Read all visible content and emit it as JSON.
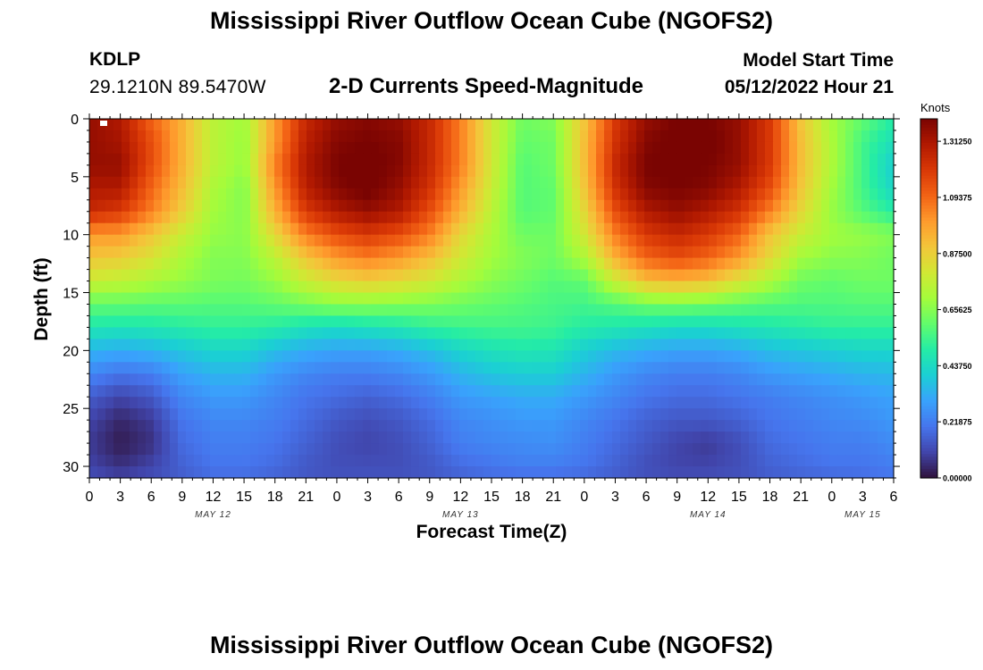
{
  "header": {
    "main_title": "Mississippi River Outflow Ocean Cube (NGOFS2)",
    "station_id": "KDLP",
    "station_coords": "29.1210N  89.5470W",
    "plot_subtitle": "2-D Currents Speed-Magnitude",
    "model_start_label": "Model Start Time",
    "model_start_value": "05/12/2022 Hour 21"
  },
  "footer": {
    "second_title": "Mississippi River Outflow Ocean Cube (NGOFS2)"
  },
  "chart_data": {
    "type": "heatmap",
    "title": "2-D Currents Speed-Magnitude",
    "xlabel": "Forecast Time(Z)",
    "ylabel": "Depth (ft)",
    "x_range_hours": [
      0,
      78
    ],
    "x_ticks": [
      0,
      3,
      6,
      9,
      12,
      15,
      18,
      21,
      24,
      27,
      30,
      33,
      36,
      39,
      42,
      45,
      48,
      51,
      54,
      57,
      60,
      63,
      66,
      69,
      72,
      75,
      78
    ],
    "x_tick_labels": [
      "0",
      "3",
      "6",
      "9",
      "12",
      "15",
      "18",
      "21",
      "0",
      "3",
      "6",
      "9",
      "12",
      "15",
      "18",
      "21",
      "0",
      "3",
      "6",
      "9",
      "12",
      "15",
      "18",
      "21",
      "0",
      "3",
      "6"
    ],
    "date_labels": [
      {
        "hour": 12,
        "label": "MAY 12"
      },
      {
        "hour": 36,
        "label": "MAY 13"
      },
      {
        "hour": 60,
        "label": "MAY 14"
      },
      {
        "hour": 75,
        "label": "MAY 15"
      }
    ],
    "y_range_ft": [
      0,
      31
    ],
    "y_reversed": true,
    "y_ticks": [
      0,
      5,
      10,
      15,
      20,
      25,
      30
    ],
    "y_tick_labels": [
      "0",
      "5",
      "10",
      "15",
      "20",
      "25",
      "30"
    ],
    "colorbar": {
      "unit": "Knots",
      "range": [
        0.0,
        1.4
      ],
      "ticks": [
        0.0,
        0.21875,
        0.4375,
        0.65625,
        0.875,
        1.09375,
        1.3125
      ],
      "tick_labels": [
        "0.00000",
        "0.21875",
        "0.43750",
        "0.65625",
        "0.87500",
        "1.09375",
        "1.31250"
      ],
      "colors": [
        "#30123b",
        "#4145ab",
        "#4675ed",
        "#39a2fc",
        "#1bcfd4",
        "#24eca6",
        "#61fc6c",
        "#a4fc3b",
        "#d1e834",
        "#f3c63a",
        "#fe9b2d",
        "#f36315",
        "#d93806",
        "#b11901",
        "#7a0402"
      ]
    },
    "depths_ft": [
      0,
      2,
      4,
      6,
      8,
      10,
      12,
      14,
      16,
      18,
      20,
      22,
      24,
      26,
      28,
      30,
      31
    ],
    "hours": [
      0,
      3,
      6,
      9,
      12,
      15,
      18,
      21,
      24,
      27,
      30,
      33,
      36,
      39,
      42,
      45,
      48,
      51,
      54,
      57,
      60,
      63,
      66,
      69,
      72,
      75,
      78
    ],
    "speed_knots": [
      [
        1.35,
        1.3,
        1.1,
        0.95,
        0.75,
        0.7,
        1.0,
        1.25,
        1.35,
        1.38,
        1.35,
        1.25,
        1.05,
        0.8,
        0.62,
        0.65,
        0.9,
        1.2,
        1.35,
        1.4,
        1.4,
        1.35,
        1.2,
        0.9,
        0.7,
        0.6,
        0.5
      ],
      [
        1.35,
        1.32,
        1.15,
        0.95,
        0.75,
        0.68,
        1.0,
        1.28,
        1.38,
        1.4,
        1.38,
        1.25,
        1.05,
        0.8,
        0.6,
        0.62,
        0.92,
        1.22,
        1.38,
        1.42,
        1.42,
        1.35,
        1.2,
        0.92,
        0.72,
        0.55,
        0.45
      ],
      [
        1.35,
        1.35,
        1.15,
        0.95,
        0.75,
        0.68,
        1.05,
        1.3,
        1.4,
        1.42,
        1.38,
        1.25,
        1.05,
        0.8,
        0.58,
        0.62,
        0.92,
        1.25,
        1.4,
        1.42,
        1.4,
        1.35,
        1.2,
        0.92,
        0.72,
        0.55,
        0.4
      ],
      [
        1.3,
        1.3,
        1.1,
        0.92,
        0.72,
        0.65,
        1.0,
        1.28,
        1.38,
        1.42,
        1.35,
        1.22,
        1.0,
        0.78,
        0.58,
        0.6,
        0.9,
        1.22,
        1.38,
        1.4,
        1.38,
        1.3,
        1.15,
        0.9,
        0.7,
        0.55,
        0.42
      ],
      [
        1.25,
        1.2,
        1.05,
        0.88,
        0.7,
        0.65,
        0.95,
        1.2,
        1.3,
        1.35,
        1.3,
        1.15,
        0.95,
        0.75,
        0.58,
        0.6,
        0.85,
        1.15,
        1.3,
        1.35,
        1.3,
        1.22,
        1.05,
        0.85,
        0.68,
        0.58,
        0.5
      ],
      [
        1.0,
        1.0,
        0.9,
        0.78,
        0.68,
        0.66,
        0.85,
        1.05,
        1.15,
        1.2,
        1.15,
        1.05,
        0.85,
        0.72,
        0.62,
        0.62,
        0.8,
        1.05,
        1.2,
        1.25,
        1.2,
        1.1,
        0.9,
        0.78,
        0.7,
        0.68,
        0.65
      ],
      [
        0.9,
        0.88,
        0.82,
        0.72,
        0.65,
        0.65,
        0.75,
        0.9,
        1.0,
        1.05,
        1.0,
        0.92,
        0.8,
        0.7,
        0.65,
        0.62,
        0.72,
        0.95,
        1.1,
        1.15,
        1.1,
        1.0,
        0.85,
        0.7,
        0.66,
        0.65,
        0.62
      ],
      [
        0.78,
        0.76,
        0.72,
        0.68,
        0.64,
        0.63,
        0.68,
        0.78,
        0.85,
        0.88,
        0.85,
        0.8,
        0.72,
        0.66,
        0.62,
        0.58,
        0.6,
        0.78,
        0.92,
        0.95,
        0.92,
        0.82,
        0.72,
        0.62,
        0.6,
        0.62,
        0.62
      ],
      [
        0.6,
        0.6,
        0.59,
        0.59,
        0.58,
        0.58,
        0.6,
        0.63,
        0.66,
        0.66,
        0.65,
        0.64,
        0.62,
        0.6,
        0.58,
        0.56,
        0.55,
        0.58,
        0.62,
        0.63,
        0.62,
        0.6,
        0.58,
        0.57,
        0.57,
        0.58,
        0.58
      ],
      [
        0.48,
        0.47,
        0.48,
        0.5,
        0.52,
        0.52,
        0.5,
        0.46,
        0.44,
        0.46,
        0.48,
        0.52,
        0.54,
        0.55,
        0.55,
        0.54,
        0.5,
        0.48,
        0.46,
        0.44,
        0.44,
        0.46,
        0.48,
        0.5,
        0.52,
        0.52,
        0.52
      ],
      [
        0.34,
        0.32,
        0.34,
        0.38,
        0.42,
        0.42,
        0.36,
        0.32,
        0.3,
        0.3,
        0.32,
        0.36,
        0.42,
        0.46,
        0.48,
        0.47,
        0.4,
        0.35,
        0.32,
        0.3,
        0.3,
        0.32,
        0.36,
        0.38,
        0.4,
        0.42,
        0.42
      ],
      [
        0.24,
        0.2,
        0.22,
        0.3,
        0.34,
        0.34,
        0.28,
        0.24,
        0.22,
        0.22,
        0.24,
        0.28,
        0.34,
        0.38,
        0.4,
        0.4,
        0.34,
        0.28,
        0.24,
        0.22,
        0.22,
        0.24,
        0.28,
        0.3,
        0.32,
        0.34,
        0.35
      ],
      [
        0.15,
        0.1,
        0.14,
        0.24,
        0.28,
        0.28,
        0.24,
        0.2,
        0.18,
        0.16,
        0.18,
        0.22,
        0.28,
        0.3,
        0.32,
        0.32,
        0.28,
        0.24,
        0.2,
        0.18,
        0.18,
        0.2,
        0.22,
        0.24,
        0.26,
        0.28,
        0.3
      ],
      [
        0.1,
        0.04,
        0.08,
        0.2,
        0.24,
        0.24,
        0.22,
        0.18,
        0.14,
        0.12,
        0.14,
        0.18,
        0.24,
        0.26,
        0.28,
        0.28,
        0.24,
        0.2,
        0.16,
        0.14,
        0.14,
        0.16,
        0.2,
        0.22,
        0.24,
        0.25,
        0.28
      ],
      [
        0.08,
        0.02,
        0.06,
        0.18,
        0.22,
        0.22,
        0.2,
        0.16,
        0.12,
        0.1,
        0.12,
        0.16,
        0.22,
        0.24,
        0.25,
        0.26,
        0.22,
        0.18,
        0.14,
        0.1,
        0.08,
        0.12,
        0.18,
        0.2,
        0.22,
        0.22,
        0.25
      ],
      [
        0.1,
        0.06,
        0.1,
        0.16,
        0.2,
        0.2,
        0.18,
        0.14,
        0.12,
        0.12,
        0.12,
        0.14,
        0.18,
        0.2,
        0.22,
        0.22,
        0.2,
        0.16,
        0.12,
        0.1,
        0.1,
        0.12,
        0.16,
        0.18,
        0.2,
        0.2,
        0.22
      ],
      [
        0.12,
        0.1,
        0.12,
        0.15,
        0.18,
        0.18,
        0.16,
        0.14,
        0.13,
        0.13,
        0.13,
        0.14,
        0.16,
        0.18,
        0.18,
        0.18,
        0.17,
        0.15,
        0.13,
        0.12,
        0.12,
        0.13,
        0.15,
        0.16,
        0.17,
        0.18,
        0.2
      ]
    ]
  }
}
